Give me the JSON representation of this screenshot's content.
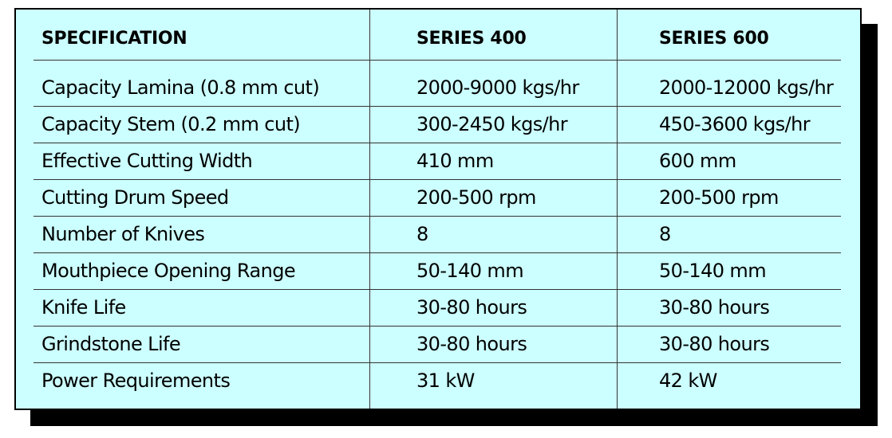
{
  "table": {
    "header": [
      "SPECIFICATION",
      "SERIES 400",
      "SERIES 600"
    ],
    "rows": [
      [
        "Capacity Lamina (0.8 mm cut)",
        "2000-9000 kgs/hr",
        "2000-12000 kgs/hr"
      ],
      [
        "Capacity Stem (0.2 mm cut)",
        "300-2450 kgs/hr",
        "450-3600 kgs/hr"
      ],
      [
        "Effective Cutting Width",
        "410 mm",
        "600 mm"
      ],
      [
        "Cutting Drum Speed",
        "200-500 rpm",
        "200-500 rpm"
      ],
      [
        "Number of Knives",
        "8",
        "8"
      ],
      [
        "Mouthpiece Opening Range",
        "50-140 mm",
        "50-140 mm"
      ],
      [
        "Knife Life",
        "30-80 hours",
        "30-80 hours"
      ],
      [
        "Grindstone Life",
        "30-80 hours",
        "30-80 hours"
      ],
      [
        "Power Requirements",
        "31 kW",
        "42 kW"
      ]
    ]
  }
}
